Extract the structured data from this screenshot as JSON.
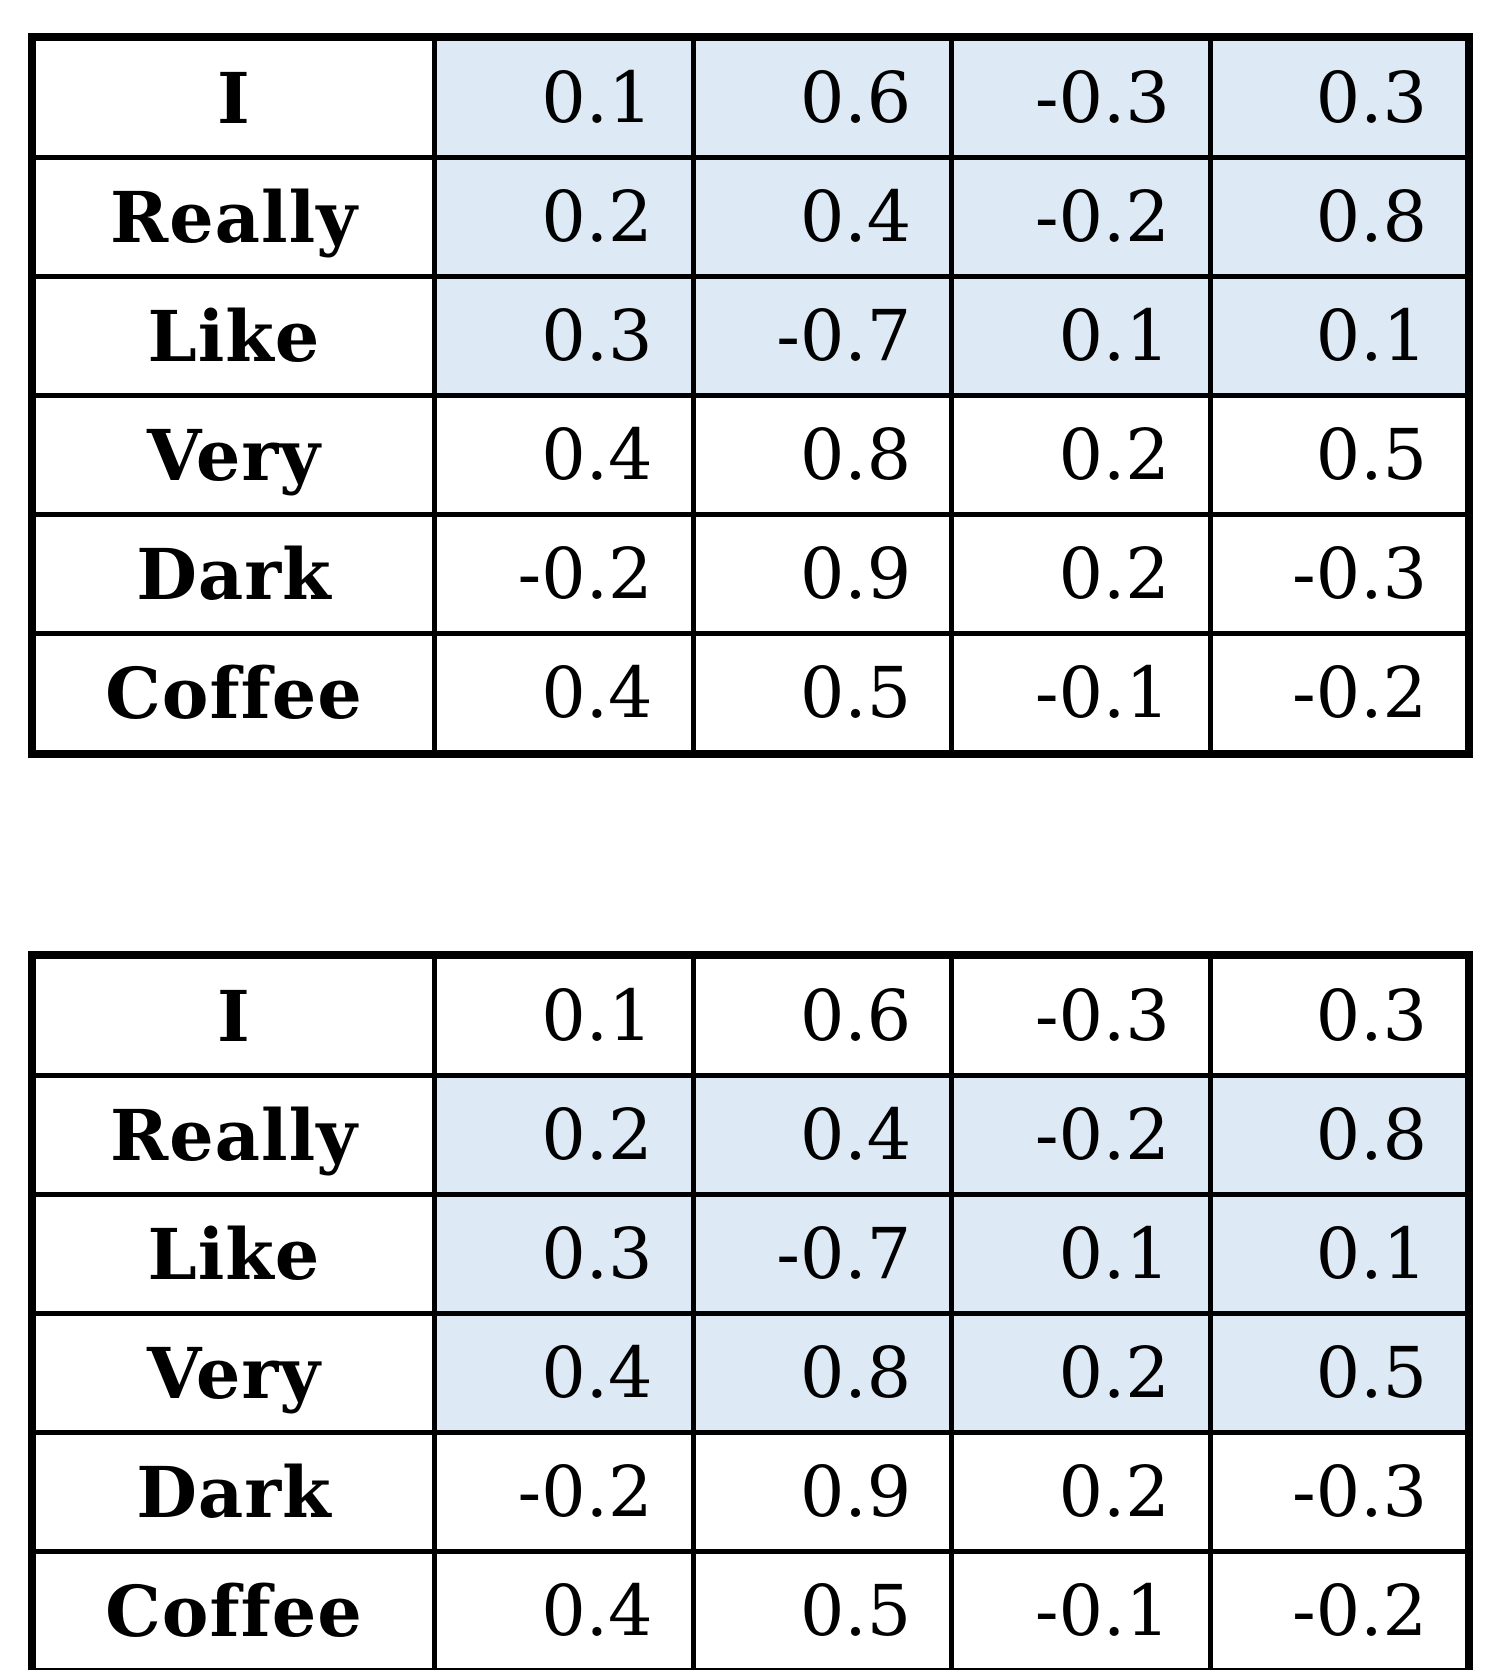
{
  "colors": {
    "highlight": "#dde9f4",
    "border": "#000000",
    "background": "#ffffff",
    "text": "#000000"
  },
  "tables": [
    {
      "name": "word-vector-table-1",
      "rows": [
        {
          "label": "I",
          "values": [
            "0.1",
            "0.6",
            "-0.3",
            "0.3"
          ],
          "highlighted": true
        },
        {
          "label": "Really",
          "values": [
            "0.2",
            "0.4",
            "-0.2",
            "0.8"
          ],
          "highlighted": true
        },
        {
          "label": "Like",
          "values": [
            "0.3",
            "-0.7",
            "0.1",
            "0.1"
          ],
          "highlighted": true
        },
        {
          "label": "Very",
          "values": [
            "0.4",
            "0.8",
            "0.2",
            "0.5"
          ],
          "highlighted": false
        },
        {
          "label": "Dark",
          "values": [
            "-0.2",
            "0.9",
            "0.2",
            "-0.3"
          ],
          "highlighted": false
        },
        {
          "label": "Coffee",
          "values": [
            "0.4",
            "0.5",
            "-0.1",
            "-0.2"
          ],
          "highlighted": false
        }
      ]
    },
    {
      "name": "word-vector-table-2",
      "rows": [
        {
          "label": "I",
          "values": [
            "0.1",
            "0.6",
            "-0.3",
            "0.3"
          ],
          "highlighted": false
        },
        {
          "label": "Really",
          "values": [
            "0.2",
            "0.4",
            "-0.2",
            "0.8"
          ],
          "highlighted": true
        },
        {
          "label": "Like",
          "values": [
            "0.3",
            "-0.7",
            "0.1",
            "0.1"
          ],
          "highlighted": true
        },
        {
          "label": "Very",
          "values": [
            "0.4",
            "0.8",
            "0.2",
            "0.5"
          ],
          "highlighted": true
        },
        {
          "label": "Dark",
          "values": [
            "-0.2",
            "0.9",
            "0.2",
            "-0.3"
          ],
          "highlighted": false
        },
        {
          "label": "Coffee",
          "values": [
            "0.4",
            "0.5",
            "-0.1",
            "-0.2"
          ],
          "highlighted": false
        }
      ]
    }
  ]
}
